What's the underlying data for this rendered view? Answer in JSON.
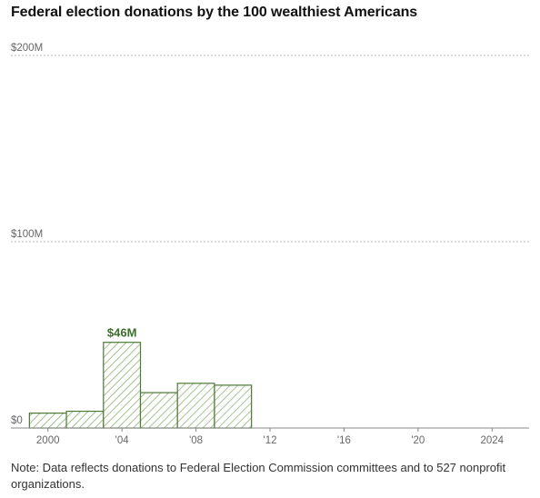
{
  "header": {
    "title": "Federal election donations by the 100 wealthiest Americans"
  },
  "footer": {
    "note": "Note: Data reflects donations to Federal Election Commission committees and to 527 nonprofit organizations."
  },
  "colors": {
    "bar_stroke": "#4c7a35",
    "bar_hatch": "#8fb377",
    "bar_fill": "#ffffff",
    "bar_label": "#3d6e2a",
    "gridline": "#bbbbbb",
    "axis": "#888888"
  },
  "chart_data": {
    "type": "bar",
    "title": "Federal election donations by the 100 wealthiest Americans",
    "xlabel": "",
    "ylabel": "",
    "ylim": [
      0,
      200
    ],
    "y_unit": "$M",
    "y_ticks": [
      {
        "value": 0,
        "label": "$0"
      },
      {
        "value": 100,
        "label": "$100M"
      },
      {
        "value": 200,
        "label": "$200M"
      }
    ],
    "x_range": [
      1998,
      2026
    ],
    "x_ticks": [
      {
        "value": 2000,
        "label": "2000"
      },
      {
        "value": 2004,
        "label": "'04"
      },
      {
        "value": 2008,
        "label": "'08"
      },
      {
        "value": 2012,
        "label": "'12"
      },
      {
        "value": 2016,
        "label": "'16"
      },
      {
        "value": 2020,
        "label": "'20"
      },
      {
        "value": 2024,
        "label": "2024"
      }
    ],
    "categories": [
      "2000",
      "2002",
      "2004",
      "2006",
      "2008",
      "2010"
    ],
    "values": [
      8,
      9,
      46,
      19,
      24,
      23
    ],
    "annotations": [
      {
        "category": "2004",
        "label": "$46M"
      }
    ],
    "grid": true,
    "bar_style": "hatched"
  }
}
